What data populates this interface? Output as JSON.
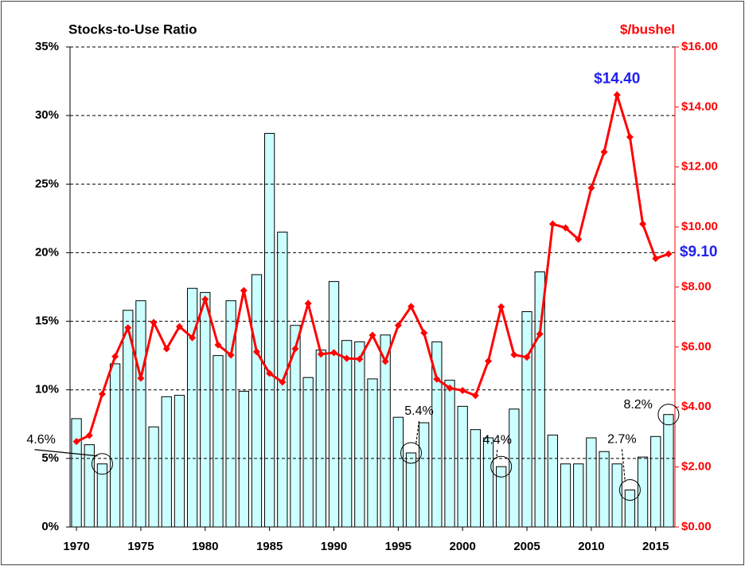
{
  "chart_data": {
    "type": "bar_line",
    "title": "Stocks-to-Use Ratio",
    "y2_title": "$/bushel",
    "x": [
      1970,
      1971,
      1972,
      1973,
      1974,
      1975,
      1976,
      1977,
      1978,
      1979,
      1980,
      1981,
      1982,
      1983,
      1984,
      1985,
      1986,
      1987,
      1988,
      1989,
      1990,
      1991,
      1992,
      1993,
      1994,
      1995,
      1996,
      1997,
      1998,
      1999,
      2000,
      2001,
      2002,
      2003,
      2004,
      2005,
      2006,
      2007,
      2008,
      2009,
      2010,
      2011,
      2012,
      2013,
      2014,
      2015,
      2016
    ],
    "xlim": [
      1969.5,
      2016.5
    ],
    "xticks": [
      1970,
      1975,
      1980,
      1985,
      1990,
      1995,
      2000,
      2005,
      2010,
      2015
    ],
    "series": [
      {
        "name": "Stocks-to-Use Ratio",
        "type": "bar",
        "color": "#ccffff",
        "values": [
          7.9,
          6.0,
          4.6,
          11.9,
          15.8,
          16.5,
          7.3,
          9.5,
          9.6,
          17.4,
          17.1,
          12.5,
          16.5,
          9.9,
          18.4,
          28.7,
          21.5,
          14.7,
          10.9,
          12.9,
          17.9,
          13.6,
          13.5,
          10.8,
          14.0,
          8.0,
          5.4,
          7.6,
          13.5,
          10.7,
          8.8,
          7.1,
          6.5,
          4.4,
          8.6,
          15.7,
          18.6,
          6.7,
          4.6,
          4.6,
          6.5,
          5.5,
          4.6,
          2.7,
          5.1,
          6.6,
          8.2
        ]
      },
      {
        "name": "$/bushel",
        "type": "line",
        "axis": "y2",
        "color": "#ff0000",
        "values": [
          2.85,
          3.05,
          4.43,
          5.68,
          6.64,
          4.96,
          6.82,
          5.94,
          6.68,
          6.31,
          7.59,
          6.07,
          5.73,
          7.88,
          5.84,
          5.12,
          4.83,
          5.94,
          7.45,
          5.76,
          5.81,
          5.62,
          5.6,
          6.39,
          5.52,
          6.72,
          7.35,
          6.47,
          4.93,
          4.63,
          4.55,
          4.38,
          5.53,
          7.34,
          5.74,
          5.66,
          6.43,
          10.1,
          9.97,
          9.59,
          11.3,
          12.5,
          14.4,
          13.0,
          10.1,
          8.95,
          9.1
        ]
      }
    ],
    "ylim": [
      0,
      35
    ],
    "yticks": [
      {
        "value": 0,
        "label": "0%"
      },
      {
        "value": 5,
        "label": "5%"
      },
      {
        "value": 10,
        "label": "10%"
      },
      {
        "value": 15,
        "label": "15%"
      },
      {
        "value": 20,
        "label": "20%"
      },
      {
        "value": 25,
        "label": "25%"
      },
      {
        "value": 30,
        "label": "30%"
      },
      {
        "value": 35,
        "label": "35%"
      }
    ],
    "y2lim": [
      0,
      16
    ],
    "y2ticks": [
      {
        "value": 0,
        "label": "$0.00"
      },
      {
        "value": 2,
        "label": "$2.00"
      },
      {
        "value": 4,
        "label": "$4.00"
      },
      {
        "value": 6,
        "label": "$6.00"
      },
      {
        "value": 8,
        "label": "$8.00"
      },
      {
        "value": 10,
        "label": "$10.00"
      },
      {
        "value": 12,
        "label": "$12.00"
      },
      {
        "value": 14,
        "label": "$14.00"
      },
      {
        "value": 16,
        "label": "$16.00"
      }
    ],
    "grid": true,
    "bar_annotations": [
      {
        "text": "4.6%",
        "x": 1972
      },
      {
        "text": "5.4%",
        "x": 1996
      },
      {
        "text": "4.4%",
        "x": 2003
      },
      {
        "text": "2.7%",
        "x": 2013
      },
      {
        "text": "8.2%",
        "x": 2016
      }
    ],
    "line_annotations": [
      {
        "text": "$14.40",
        "x": 2012
      },
      {
        "text": "$9.10",
        "x": 2016
      }
    ]
  }
}
